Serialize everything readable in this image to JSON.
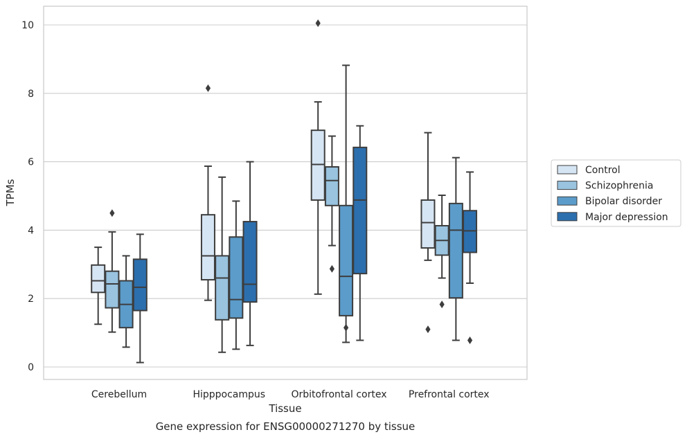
{
  "chart_data": {
    "type": "box",
    "xlabel": "Tissue",
    "ylabel": "TPMs",
    "caption": "Gene expression for ENSG00000271270 by tissue",
    "ylim": [
      -0.35,
      10.55
    ],
    "yticks": [
      0,
      2,
      4,
      6,
      8,
      10
    ],
    "grid": true,
    "legend_position": "right",
    "categories": [
      "Cerebellum",
      "Hipppocampus",
      "Orbitofrontal cortex",
      "Prefrontal cortex"
    ],
    "series": [
      {
        "name": "Control",
        "color": "#d6e5f3",
        "boxes": [
          {
            "whislo": 1.25,
            "q1": 2.18,
            "med": 2.52,
            "q3": 2.98,
            "whishi": 3.5,
            "fliers": []
          },
          {
            "whislo": 1.95,
            "q1": 2.55,
            "med": 3.25,
            "q3": 4.45,
            "whishi": 5.87,
            "fliers": [
              8.15
            ]
          },
          {
            "whislo": 2.13,
            "q1": 4.88,
            "med": 5.92,
            "q3": 6.92,
            "whishi": 7.75,
            "fliers": [
              10.05
            ]
          },
          {
            "whislo": 3.12,
            "q1": 3.48,
            "med": 4.22,
            "q3": 4.88,
            "whishi": 6.85,
            "fliers": [
              1.1
            ]
          }
        ]
      },
      {
        "name": "Schizophrenia",
        "color": "#99c3df",
        "boxes": [
          {
            "whislo": 1.02,
            "q1": 1.73,
            "med": 2.43,
            "q3": 2.8,
            "whishi": 3.95,
            "fliers": [
              4.5
            ]
          },
          {
            "whislo": 0.43,
            "q1": 1.38,
            "med": 2.6,
            "q3": 3.25,
            "whishi": 5.55,
            "fliers": []
          },
          {
            "whislo": 3.55,
            "q1": 4.72,
            "med": 5.45,
            "q3": 5.85,
            "whishi": 6.75,
            "fliers": [
              2.87
            ]
          },
          {
            "whislo": 2.6,
            "q1": 3.27,
            "med": 3.7,
            "q3": 4.13,
            "whishi": 5.02,
            "fliers": [
              1.83
            ]
          }
        ]
      },
      {
        "name": "Bipolar disorder",
        "color": "#5b9cca",
        "boxes": [
          {
            "whislo": 0.58,
            "q1": 1.15,
            "med": 1.83,
            "q3": 2.52,
            "whishi": 3.25,
            "fliers": []
          },
          {
            "whislo": 0.52,
            "q1": 1.43,
            "med": 1.97,
            "q3": 3.8,
            "whishi": 4.85,
            "fliers": []
          },
          {
            "whislo": 0.72,
            "q1": 1.5,
            "med": 2.65,
            "q3": 4.72,
            "whishi": 8.82,
            "fliers": [
              1.15
            ]
          },
          {
            "whislo": 0.78,
            "q1": 2.02,
            "med": 4.0,
            "q3": 4.78,
            "whishi": 6.12,
            "fliers": []
          }
        ]
      },
      {
        "name": "Major depression",
        "color": "#2c6fae",
        "boxes": [
          {
            "whislo": 0.13,
            "q1": 1.65,
            "med": 2.33,
            "q3": 3.15,
            "whishi": 3.88,
            "fliers": []
          },
          {
            "whislo": 0.63,
            "q1": 1.9,
            "med": 2.42,
            "q3": 4.25,
            "whishi": 6.0,
            "fliers": []
          },
          {
            "whislo": 0.78,
            "q1": 2.73,
            "med": 4.88,
            "q3": 6.42,
            "whishi": 7.05,
            "fliers": []
          },
          {
            "whislo": 2.45,
            "q1": 3.35,
            "med": 3.98,
            "q3": 4.57,
            "whishi": 5.7,
            "fliers": [
              0.78
            ]
          }
        ]
      }
    ]
  }
}
